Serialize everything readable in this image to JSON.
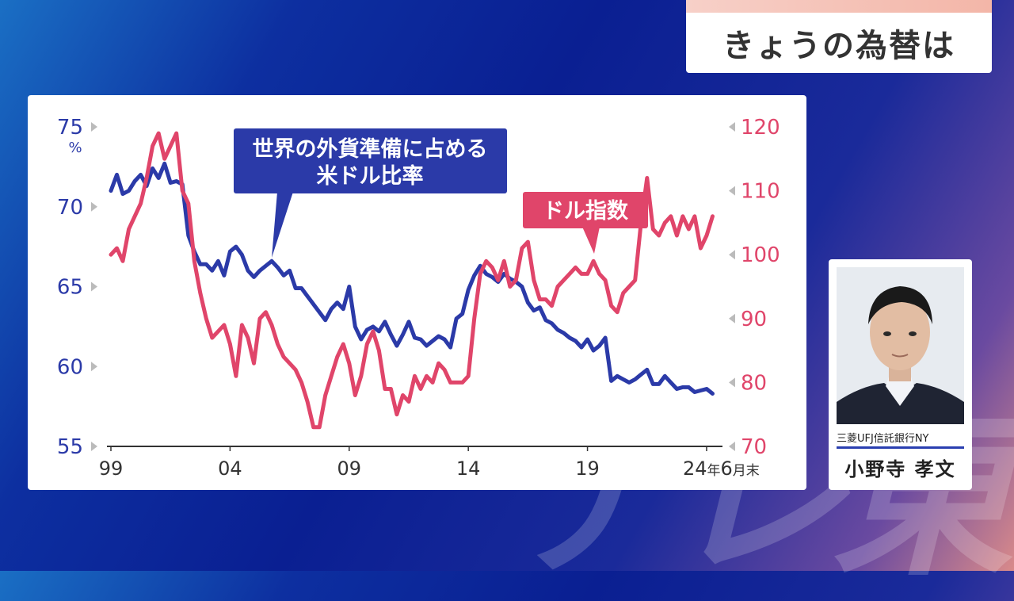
{
  "topic_title": "きょうの為替は",
  "watermark": "テレ東",
  "person": {
    "org": "三菱UFJ信託銀行NY",
    "name": "小野寺 孝文"
  },
  "colors": {
    "reserve": "#2b3aa8",
    "dollar_index": "#e0456a"
  },
  "chart_data": {
    "type": "line",
    "x_labels": [
      "99",
      "04",
      "09",
      "14",
      "19",
      "24年6月末"
    ],
    "left_axis": {
      "unit": "%",
      "ticks": [
        55,
        60,
        65,
        70,
        75
      ],
      "ylim": [
        55,
        75
      ]
    },
    "right_axis": {
      "ticks": [
        70,
        80,
        90,
        100,
        110,
        120
      ],
      "ylim": [
        70,
        120
      ]
    },
    "annotations": {
      "reserve_label": "世界の外貨準備に占める\n米ドル比率",
      "dollar_index_label": "ドル指数"
    },
    "series": [
      {
        "name": "世界の外貨準備に占める米ドル比率",
        "axis": "left",
        "x": [
          1999.0,
          1999.25,
          1999.5,
          1999.75,
          2000.0,
          2000.25,
          2000.5,
          2000.75,
          2001.0,
          2001.25,
          2001.5,
          2001.75,
          2002.0,
          2002.25,
          2002.5,
          2002.75,
          2003.0,
          2003.25,
          2003.5,
          2003.75,
          2004.0,
          2004.25,
          2004.5,
          2004.75,
          2005.0,
          2005.25,
          2005.5,
          2005.75,
          2006.0,
          2006.25,
          2006.5,
          2006.75,
          2007.0,
          2007.25,
          2007.5,
          2007.75,
          2008.0,
          2008.25,
          2008.5,
          2008.75,
          2009.0,
          2009.25,
          2009.5,
          2009.75,
          2010.0,
          2010.25,
          2010.5,
          2010.75,
          2011.0,
          2011.25,
          2011.5,
          2011.75,
          2012.0,
          2012.25,
          2012.5,
          2012.75,
          2013.0,
          2013.25,
          2013.5,
          2013.75,
          2014.0,
          2014.25,
          2014.5,
          2014.75,
          2015.0,
          2015.25,
          2015.5,
          2015.75,
          2016.0,
          2016.25,
          2016.5,
          2016.75,
          2017.0,
          2017.25,
          2017.5,
          2017.75,
          2018.0,
          2018.25,
          2018.5,
          2018.75,
          2019.0,
          2019.25,
          2019.5,
          2019.75,
          2020.0,
          2020.25,
          2020.5,
          2020.75,
          2021.0,
          2021.25,
          2021.5,
          2021.75,
          2022.0,
          2022.25,
          2022.5,
          2022.75,
          2023.0,
          2023.25,
          2023.5,
          2023.75,
          2024.0,
          2024.25
        ],
        "values": [
          71.0,
          72.0,
          70.8,
          71.0,
          71.6,
          72.0,
          71.3,
          72.4,
          71.8,
          72.7,
          71.5,
          71.6,
          71.4,
          68.2,
          67.2,
          66.4,
          66.4,
          66.0,
          66.6,
          65.7,
          67.2,
          67.5,
          67.0,
          66.0,
          65.6,
          66.0,
          66.3,
          66.6,
          66.2,
          65.7,
          66.0,
          64.9,
          64.9,
          64.4,
          63.9,
          63.4,
          62.9,
          63.6,
          64.0,
          63.6,
          65.0,
          62.5,
          61.7,
          62.3,
          62.5,
          62.2,
          62.8,
          62.0,
          61.3,
          62.0,
          62.8,
          61.8,
          61.7,
          61.3,
          61.6,
          61.9,
          61.7,
          61.2,
          63.0,
          63.3,
          64.8,
          65.7,
          66.3,
          65.8,
          65.6,
          65.3,
          65.8,
          65.5,
          65.3,
          65.0,
          64.0,
          63.5,
          63.7,
          62.9,
          62.7,
          62.3,
          62.1,
          61.8,
          61.6,
          61.2,
          61.7,
          61.0,
          61.3,
          61.8,
          59.1,
          59.4,
          59.2,
          59.0,
          59.2,
          59.5,
          59.8,
          58.9,
          58.9,
          59.4,
          59.0,
          58.6,
          58.7,
          58.7,
          58.4,
          58.5,
          58.6,
          58.3
        ]
      },
      {
        "name": "ドル指数",
        "axis": "right",
        "x": [
          1999.0,
          1999.25,
          1999.5,
          1999.75,
          2000.0,
          2000.25,
          2000.5,
          2000.75,
          2001.0,
          2001.25,
          2001.5,
          2001.75,
          2002.0,
          2002.25,
          2002.5,
          2002.75,
          2003.0,
          2003.25,
          2003.5,
          2003.75,
          2004.0,
          2004.25,
          2004.5,
          2004.75,
          2005.0,
          2005.25,
          2005.5,
          2005.75,
          2006.0,
          2006.25,
          2006.5,
          2006.75,
          2007.0,
          2007.25,
          2007.5,
          2007.75,
          2008.0,
          2008.25,
          2008.5,
          2008.75,
          2009.0,
          2009.25,
          2009.5,
          2009.75,
          2010.0,
          2010.25,
          2010.5,
          2010.75,
          2011.0,
          2011.25,
          2011.5,
          2011.75,
          2012.0,
          2012.25,
          2012.5,
          2012.75,
          2013.0,
          2013.25,
          2013.5,
          2013.75,
          2014.0,
          2014.25,
          2014.5,
          2014.75,
          2015.0,
          2015.25,
          2015.5,
          2015.75,
          2016.0,
          2016.25,
          2016.5,
          2016.75,
          2017.0,
          2017.25,
          2017.5,
          2017.75,
          2018.0,
          2018.25,
          2018.5,
          2018.75,
          2019.0,
          2019.25,
          2019.5,
          2019.75,
          2020.0,
          2020.25,
          2020.5,
          2020.75,
          2021.0,
          2021.25,
          2021.5,
          2021.75,
          2022.0,
          2022.25,
          2022.5,
          2022.75,
          2023.0,
          2023.25,
          2023.5,
          2023.75,
          2024.0,
          2024.25
        ],
        "values": [
          100.0,
          101.0,
          99.0,
          104.0,
          106.0,
          108.0,
          112.0,
          117.0,
          119.0,
          115.0,
          117.0,
          119.0,
          110.0,
          108.0,
          99.0,
          94.0,
          90.0,
          87.0,
          88.0,
          89.0,
          86.0,
          81.0,
          89.0,
          87.0,
          83.0,
          90.0,
          91.0,
          89.0,
          86.0,
          84.0,
          83.0,
          82.0,
          80.0,
          77.0,
          73.0,
          73.0,
          78.0,
          81.0,
          84.0,
          86.0,
          83.0,
          78.0,
          81.0,
          86.0,
          88.0,
          85.0,
          79.0,
          79.0,
          75.0,
          78.0,
          77.0,
          81.0,
          79.0,
          81.0,
          80.0,
          83.0,
          82.0,
          80.0,
          80.0,
          80.0,
          81.0,
          90.0,
          97.0,
          99.0,
          98.0,
          96.0,
          99.0,
          95.0,
          96.0,
          101.0,
          102.0,
          96.0,
          93.0,
          93.0,
          92.0,
          95.0,
          96.0,
          97.0,
          98.0,
          97.0,
          97.0,
          99.0,
          97.0,
          96.0,
          92.0,
          91.0,
          94.0,
          95.0,
          96.0,
          105.0,
          112.0,
          104.0,
          103.0,
          105.0,
          106.0,
          103.0,
          106.0,
          104.0,
          106.0,
          101.0,
          103.0,
          106.0
        ]
      }
    ]
  }
}
